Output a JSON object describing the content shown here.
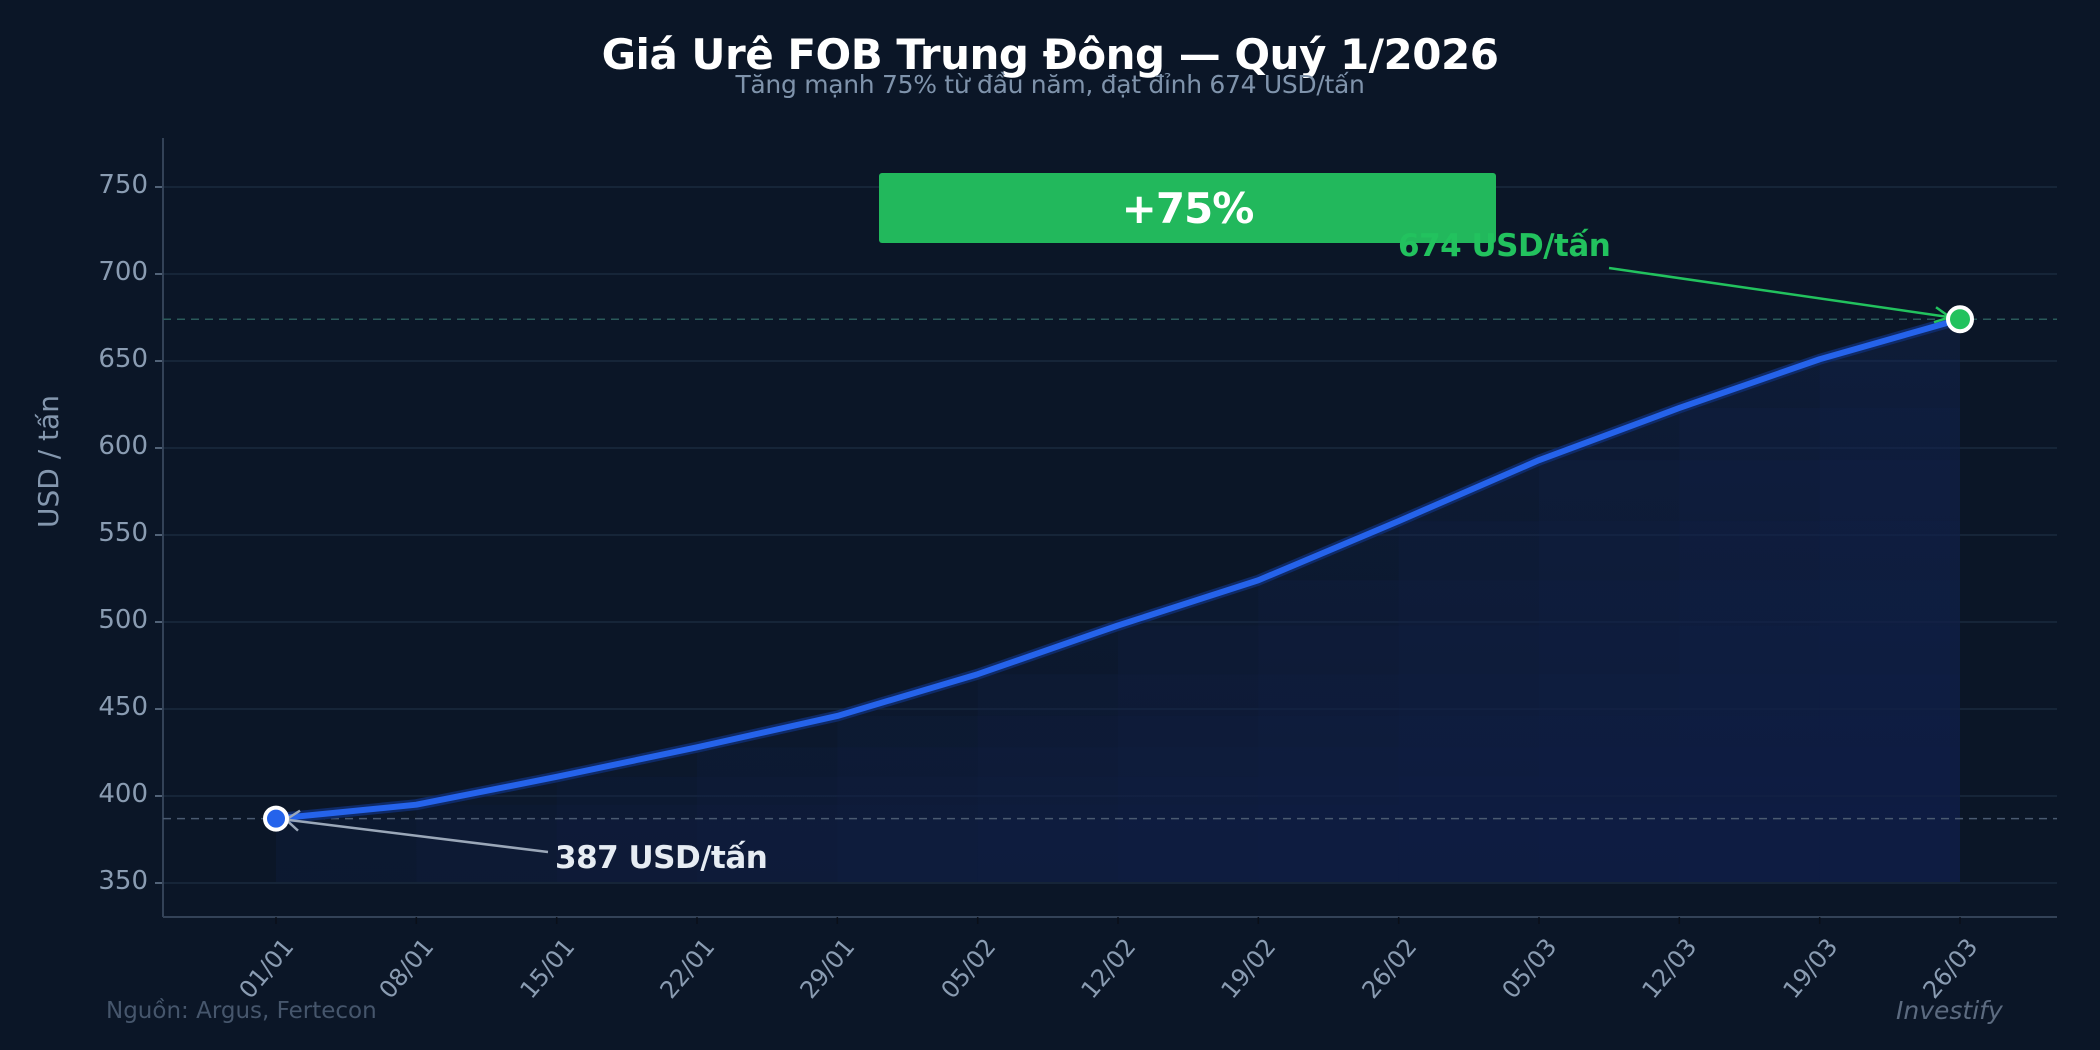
{
  "header": {
    "title": "Giá Urê FOB Trung Đông — Quý 1/2026",
    "subtitle": "Tăng mạnh 75% từ đầu năm, đạt đỉnh 674 USD/tấn"
  },
  "badge": {
    "label": "+75%",
    "color": "#22b85c"
  },
  "annotations": {
    "peak": {
      "label": "674 USD/tấn",
      "color": "#22c25e"
    },
    "start": {
      "label": "387 USD/tấn",
      "color": "#e6ecf3"
    }
  },
  "footer": {
    "source": "Nguồn: Argus, Fertecon",
    "brand": "Investify"
  },
  "axes": {
    "ylabel": "USD / tấn",
    "yticks": [
      "350",
      "400",
      "450",
      "500",
      "550",
      "600",
      "650",
      "700",
      "750"
    ],
    "xticks": [
      "01/01",
      "08/01",
      "15/01",
      "22/01",
      "29/01",
      "05/02",
      "12/02",
      "19/02",
      "26/02",
      "05/03",
      "12/03",
      "19/03",
      "26/03"
    ]
  },
  "chart_data": {
    "type": "line",
    "title": "Giá Urê FOB Trung Đông — Quý 1/2026",
    "subtitle": "Tăng mạnh 75% từ đầu năm, đạt đỉnh 674 USD/tấn",
    "xlabel": "",
    "ylabel": "USD / tấn",
    "ylim": [
      330,
      780
    ],
    "grid": true,
    "legend": "none",
    "categories": [
      "01/01",
      "08/01",
      "15/01",
      "22/01",
      "29/01",
      "05/02",
      "12/02",
      "19/02",
      "26/02",
      "05/03",
      "12/03",
      "19/03",
      "26/03"
    ],
    "series": [
      {
        "name": "Giá Urê FOB Trung Đông",
        "color": "#2563eb",
        "values": [
          387,
          395,
          411,
          428,
          446,
          470,
          498,
          524,
          558,
          593,
          623,
          651,
          674
        ]
      }
    ],
    "reference_lines": [
      {
        "y": 674,
        "style": "dashed",
        "color": "#2a5a5a"
      },
      {
        "y": 387,
        "style": "dashed",
        "color": "#4a5a70"
      }
    ],
    "annotations": [
      {
        "text": "+75%",
        "type": "badge"
      },
      {
        "text": "674 USD/tấn",
        "x": "26/03",
        "y": 674
      },
      {
        "text": "387 USD/tấn",
        "x": "01/01",
        "y": 387
      }
    ],
    "source": "Nguồn: Argus, Fertecon",
    "watermark": "Investify"
  }
}
